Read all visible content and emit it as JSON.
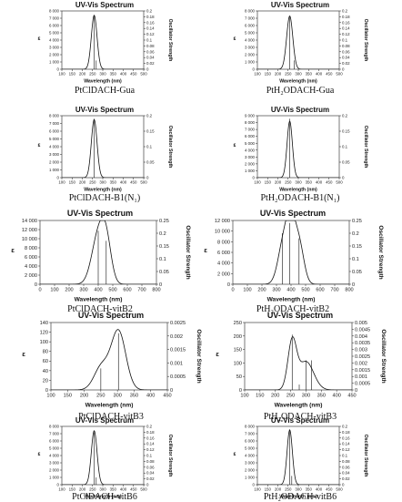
{
  "chart_data": [
    {
      "type": "line",
      "title": "UV-Vis Spectrum",
      "caption": "PtClDACH-Gua",
      "xlabel": "Wavelength (nm)",
      "ylabel": "ε",
      "y2label": "Oscillator Strength",
      "xlim": [
        100,
        500
      ],
      "ylim": [
        0,
        8000
      ],
      "y2lim": [
        0,
        0.2
      ],
      "xticks": [
        "100",
        "150",
        "200",
        "250",
        "300",
        "350",
        "400",
        "450",
        "500"
      ],
      "yticks": [
        "0",
        "1 000",
        "2 000",
        "3 000",
        "4 000",
        "5 000",
        "6 000",
        "7 000",
        "8 000"
      ],
      "y2ticks": [
        "0",
        "0.02",
        "0.04",
        "0.06",
        "0.08",
        "0.1",
        "0.12",
        "0.14",
        "0.16",
        "0.18",
        "0.2"
      ],
      "peaks": [
        {
          "center": 258,
          "height": 7400,
          "sigma": 14
        }
      ],
      "sticks": [
        {
          "x": 258,
          "f": 0.185
        },
        {
          "x": 268,
          "f": 0.03
        }
      ]
    },
    {
      "type": "line",
      "title": "UV-Vis Spectrum",
      "caption": "PtH₂ODACH-Gua",
      "xlabel": "Wavelength (nm)",
      "ylabel": "ε",
      "y2label": "Oscillator Strength",
      "xlim": [
        100,
        500
      ],
      "ylim": [
        0,
        8000
      ],
      "y2lim": [
        0,
        0.2
      ],
      "xticks": [
        "100",
        "150",
        "200",
        "250",
        "300",
        "350",
        "400",
        "450",
        "500"
      ],
      "yticks": [
        "0",
        "1 000",
        "2 000",
        "3 000",
        "4 000",
        "5 000",
        "6 000",
        "7 000",
        "8 000"
      ],
      "y2ticks": [
        "0",
        "0.02",
        "0.04",
        "0.06",
        "0.08",
        "0.1",
        "0.12",
        "0.14",
        "0.16",
        "0.18",
        "0.2"
      ],
      "peaks": [
        {
          "center": 258,
          "height": 7300,
          "sigma": 15
        }
      ],
      "sticks": [
        {
          "x": 258,
          "f": 0.18
        },
        {
          "x": 280,
          "f": 0.03
        }
      ]
    },
    {
      "type": "line",
      "title": "UV-Vis Spectrum",
      "caption": "PtClDACH-B1(N₁)",
      "xlabel": "Wavelength (nm)",
      "ylabel": "ε",
      "y2label": "Oscillator Strength",
      "xlim": [
        100,
        500
      ],
      "ylim": [
        0,
        8000
      ],
      "y2lim": [
        0,
        0.2
      ],
      "xticks": [
        "100",
        "150",
        "200",
        "250",
        "300",
        "350",
        "400",
        "450",
        "500"
      ],
      "yticks": [
        "0",
        "1 000",
        "2 000",
        "3 000",
        "4 000",
        "5 000",
        "6 000",
        "7 000",
        "8 000"
      ],
      "y2ticks": [
        "0",
        "0.05",
        "0.1",
        "0.15",
        "0.2"
      ],
      "peaks": [
        {
          "center": 258,
          "height": 7500,
          "sigma": 14
        }
      ],
      "sticks": [
        {
          "x": 258,
          "f": 0.19
        }
      ]
    },
    {
      "type": "line",
      "title": "UV-Vis Spectrum",
      "caption": "PtH₂ODACH-B1(N₁)",
      "xlabel": "Wavelength (nm)",
      "ylabel": "ε",
      "y2label": "Oscillator Strength",
      "xlim": [
        100,
        500
      ],
      "ylim": [
        0,
        9000
      ],
      "y2lim": [
        0,
        0.2
      ],
      "xticks": [
        "100",
        "150",
        "200",
        "250",
        "300",
        "350",
        "400",
        "450",
        "500"
      ],
      "yticks": [
        "0",
        "1 000",
        "2 000",
        "3 000",
        "4 000",
        "5 000",
        "6 000",
        "7 000",
        "8 000",
        "9 000"
      ],
      "y2ticks": [
        "0",
        "0.05",
        "0.1",
        "0.15",
        "0.2"
      ],
      "peaks": [
        {
          "center": 258,
          "height": 8200,
          "sigma": 13
        }
      ],
      "sticks": [
        {
          "x": 258,
          "f": 0.19
        }
      ]
    },
    {
      "type": "line",
      "title": "UV-Vis Spectrum",
      "caption": "PtClDACH-vitB2",
      "xlabel": "Wavelength (nm)",
      "ylabel": "ε",
      "y2label": "Oscillator Strength",
      "xlim": [
        0,
        800
      ],
      "ylim": [
        0,
        14000
      ],
      "y2lim": [
        0,
        0.25
      ],
      "xticks": [
        "0",
        "100",
        "200",
        "300",
        "400",
        "500",
        "600",
        "700",
        "800"
      ],
      "yticks": [
        "0",
        "2 000",
        "4 000",
        "6 000",
        "8 000",
        "10 000",
        "12 000",
        "14 000"
      ],
      "y2ticks": [
        "0",
        "0.05",
        "0.1",
        "0.15",
        "0.2",
        "0.25"
      ],
      "peaks": [
        {
          "center": 400,
          "height": 10500,
          "sigma": 45
        },
        {
          "center": 455,
          "height": 8000,
          "sigma": 35
        }
      ],
      "sticks": [
        {
          "x": 400,
          "f": 0.21
        },
        {
          "x": 455,
          "f": 0.17
        }
      ]
    },
    {
      "type": "line",
      "title": "UV-Vis Spectrum",
      "caption": "PtH₂ODACH-vitB2",
      "xlabel": "Wavelength (nm)",
      "ylabel": "ε",
      "y2label": "Oscillator Strength",
      "xlim": [
        0,
        800
      ],
      "ylim": [
        0,
        12000
      ],
      "y2lim": [
        0,
        0.25
      ],
      "xticks": [
        "0",
        "100",
        "200",
        "300",
        "400",
        "500",
        "600",
        "700",
        "800"
      ],
      "yticks": [
        "0",
        "2 000",
        "4 000",
        "6 000",
        "8 000",
        "10 000",
        "12 000"
      ],
      "y2ticks": [
        "0",
        "0.05",
        "0.1",
        "0.15",
        "0.2",
        "0.25"
      ],
      "peaks": [
        {
          "center": 350,
          "height": 8000,
          "sigma": 38
        },
        {
          "center": 400,
          "height": 9000,
          "sigma": 30
        },
        {
          "center": 455,
          "height": 7500,
          "sigma": 33
        }
      ],
      "sticks": [
        {
          "x": 340,
          "f": 0.2
        },
        {
          "x": 390,
          "f": 0.24
        },
        {
          "x": 455,
          "f": 0.18
        }
      ]
    },
    {
      "type": "line",
      "title": "UV-Vis Spectrum",
      "caption": "PtClDACH-vitB3",
      "xlabel": "Wavelength (nm)",
      "ylabel": "ε",
      "y2label": "Oscillator Strength",
      "xlim": [
        100,
        450
      ],
      "ylim": [
        0,
        140
      ],
      "y2lim": [
        0,
        0.0025
      ],
      "xticks": [
        "100",
        "150",
        "200",
        "250",
        "300",
        "350",
        "400",
        "450"
      ],
      "yticks": [
        "0",
        "20",
        "40",
        "60",
        "80",
        "100",
        "120",
        "140"
      ],
      "y2ticks": [
        "0",
        "0.0005",
        "0.001",
        "0.0015",
        "0.002",
        "0.0025"
      ],
      "peaks": [
        {
          "center": 303,
          "height": 122,
          "sigma": 22
        },
        {
          "center": 252,
          "height": 48,
          "sigma": 22
        }
      ],
      "sticks": [
        {
          "x": 250,
          "f": 0.0008
        },
        {
          "x": 303,
          "f": 0.0021
        }
      ]
    },
    {
      "type": "line",
      "title": "UV-Vis Spectrum",
      "caption": "PtH₂ODACH-vitB3",
      "xlabel": "Wavelength (nm)",
      "ylabel": "ε",
      "y2label": "Oscillator Strength",
      "xlim": [
        100,
        450
      ],
      "ylim": [
        0,
        250
      ],
      "y2lim": [
        0,
        0.005
      ],
      "xticks": [
        "100",
        "150",
        "200",
        "250",
        "300",
        "350",
        "400",
        "450"
      ],
      "yticks": [
        "0",
        "50",
        "100",
        "150",
        "200",
        "250"
      ],
      "y2ticks": [
        "0",
        "0.0005",
        "0.001",
        "0.0015",
        "0.002",
        "0.0025",
        "0.003",
        "0.0035",
        "0.004",
        "0.0045",
        "0.005"
      ],
      "peaks": [
        {
          "center": 255,
          "height": 175,
          "sigma": 14
        },
        {
          "center": 300,
          "height": 105,
          "sigma": 25
        }
      ],
      "sticks": [
        {
          "x": 255,
          "f": 0.0041
        },
        {
          "x": 278,
          "f": 0.0004
        },
        {
          "x": 300,
          "f": 0.0022
        },
        {
          "x": 318,
          "f": 0.0022
        }
      ]
    },
    {
      "type": "line",
      "title": "UV-Vis Spectrum",
      "caption": "PtClDACH-vitB6",
      "xlabel": "Wavelength (nm)",
      "ylabel": "ε",
      "y2label": "Oscillator Strength",
      "xlim": [
        100,
        500
      ],
      "ylim": [
        0,
        8000
      ],
      "y2lim": [
        0,
        0.2
      ],
      "xticks": [
        "100",
        "150",
        "200",
        "250",
        "300",
        "350",
        "400",
        "450",
        "500"
      ],
      "yticks": [
        "0",
        "1 000",
        "2 000",
        "3 000",
        "4 000",
        "5 000",
        "6 000",
        "7 000",
        "8 000"
      ],
      "y2ticks": [
        "0",
        "0.02",
        "0.04",
        "0.06",
        "0.08",
        "0.1",
        "0.12",
        "0.14",
        "0.16",
        "0.18",
        "0.2"
      ],
      "peaks": [
        {
          "center": 258,
          "height": 7400,
          "sigma": 14
        }
      ],
      "sticks": [
        {
          "x": 258,
          "f": 0.18
        },
        {
          "x": 268,
          "f": 0.025
        }
      ]
    },
    {
      "type": "line",
      "title": "UV-Vis Spectrum",
      "caption": "PtH₂ODACH-vitB6",
      "xlabel": "Wavelength (nm)",
      "ylabel": "ε",
      "y2label": "Oscillator Strength",
      "xlim": [
        100,
        500
      ],
      "ylim": [
        0,
        8000
      ],
      "y2lim": [
        0,
        0.2
      ],
      "xticks": [
        "100",
        "150",
        "200",
        "250",
        "300",
        "350",
        "400",
        "450",
        "500"
      ],
      "yticks": [
        "0",
        "1 000",
        "2 000",
        "3 000",
        "4 000",
        "5 000",
        "6 000",
        "7 000",
        "8 000"
      ],
      "y2ticks": [
        "0",
        "0.02",
        "0.04",
        "0.06",
        "0.08",
        "0.1",
        "0.12",
        "0.14",
        "0.16",
        "0.18",
        "0.2"
      ],
      "peaks": [
        {
          "center": 258,
          "height": 7500,
          "sigma": 13
        }
      ],
      "sticks": [
        {
          "x": 258,
          "f": 0.19
        },
        {
          "x": 268,
          "f": 0.03
        }
      ]
    }
  ]
}
